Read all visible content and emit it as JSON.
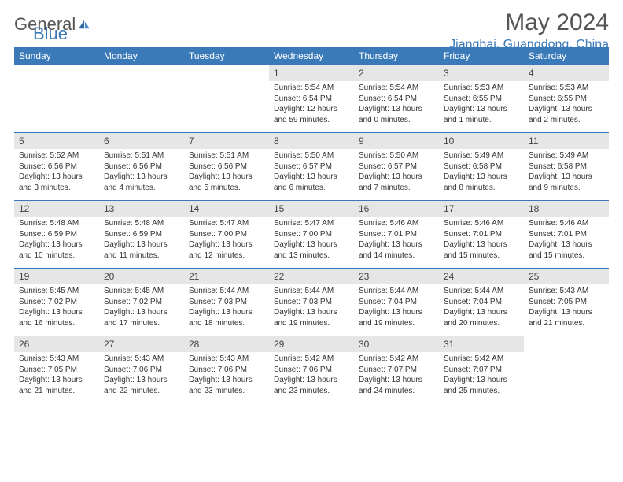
{
  "logo": {
    "text1": "General",
    "text2": "Blue"
  },
  "title": "May 2024",
  "location": "Jianghai, Guangdong, China",
  "colors": {
    "header_bg": "#3b7ab8",
    "header_text": "#ffffff",
    "daynum_bg": "#e6e6e6",
    "row_border": "#3b7ab8",
    "logo_accent": "#3b7ab8",
    "body_text": "#333333"
  },
  "weekdays": [
    "Sunday",
    "Monday",
    "Tuesday",
    "Wednesday",
    "Thursday",
    "Friday",
    "Saturday"
  ],
  "weeks": [
    [
      null,
      null,
      null,
      {
        "d": "1",
        "sr": "5:54 AM",
        "ss": "6:54 PM",
        "dl": "12 hours and 59 minutes."
      },
      {
        "d": "2",
        "sr": "5:54 AM",
        "ss": "6:54 PM",
        "dl": "13 hours and 0 minutes."
      },
      {
        "d": "3",
        "sr": "5:53 AM",
        "ss": "6:55 PM",
        "dl": "13 hours and 1 minute."
      },
      {
        "d": "4",
        "sr": "5:53 AM",
        "ss": "6:55 PM",
        "dl": "13 hours and 2 minutes."
      }
    ],
    [
      {
        "d": "5",
        "sr": "5:52 AM",
        "ss": "6:56 PM",
        "dl": "13 hours and 3 minutes."
      },
      {
        "d": "6",
        "sr": "5:51 AM",
        "ss": "6:56 PM",
        "dl": "13 hours and 4 minutes."
      },
      {
        "d": "7",
        "sr": "5:51 AM",
        "ss": "6:56 PM",
        "dl": "13 hours and 5 minutes."
      },
      {
        "d": "8",
        "sr": "5:50 AM",
        "ss": "6:57 PM",
        "dl": "13 hours and 6 minutes."
      },
      {
        "d": "9",
        "sr": "5:50 AM",
        "ss": "6:57 PM",
        "dl": "13 hours and 7 minutes."
      },
      {
        "d": "10",
        "sr": "5:49 AM",
        "ss": "6:58 PM",
        "dl": "13 hours and 8 minutes."
      },
      {
        "d": "11",
        "sr": "5:49 AM",
        "ss": "6:58 PM",
        "dl": "13 hours and 9 minutes."
      }
    ],
    [
      {
        "d": "12",
        "sr": "5:48 AM",
        "ss": "6:59 PM",
        "dl": "13 hours and 10 minutes."
      },
      {
        "d": "13",
        "sr": "5:48 AM",
        "ss": "6:59 PM",
        "dl": "13 hours and 11 minutes."
      },
      {
        "d": "14",
        "sr": "5:47 AM",
        "ss": "7:00 PM",
        "dl": "13 hours and 12 minutes."
      },
      {
        "d": "15",
        "sr": "5:47 AM",
        "ss": "7:00 PM",
        "dl": "13 hours and 13 minutes."
      },
      {
        "d": "16",
        "sr": "5:46 AM",
        "ss": "7:01 PM",
        "dl": "13 hours and 14 minutes."
      },
      {
        "d": "17",
        "sr": "5:46 AM",
        "ss": "7:01 PM",
        "dl": "13 hours and 15 minutes."
      },
      {
        "d": "18",
        "sr": "5:46 AM",
        "ss": "7:01 PM",
        "dl": "13 hours and 15 minutes."
      }
    ],
    [
      {
        "d": "19",
        "sr": "5:45 AM",
        "ss": "7:02 PM",
        "dl": "13 hours and 16 minutes."
      },
      {
        "d": "20",
        "sr": "5:45 AM",
        "ss": "7:02 PM",
        "dl": "13 hours and 17 minutes."
      },
      {
        "d": "21",
        "sr": "5:44 AM",
        "ss": "7:03 PM",
        "dl": "13 hours and 18 minutes."
      },
      {
        "d": "22",
        "sr": "5:44 AM",
        "ss": "7:03 PM",
        "dl": "13 hours and 19 minutes."
      },
      {
        "d": "23",
        "sr": "5:44 AM",
        "ss": "7:04 PM",
        "dl": "13 hours and 19 minutes."
      },
      {
        "d": "24",
        "sr": "5:44 AM",
        "ss": "7:04 PM",
        "dl": "13 hours and 20 minutes."
      },
      {
        "d": "25",
        "sr": "5:43 AM",
        "ss": "7:05 PM",
        "dl": "13 hours and 21 minutes."
      }
    ],
    [
      {
        "d": "26",
        "sr": "5:43 AM",
        "ss": "7:05 PM",
        "dl": "13 hours and 21 minutes."
      },
      {
        "d": "27",
        "sr": "5:43 AM",
        "ss": "7:06 PM",
        "dl": "13 hours and 22 minutes."
      },
      {
        "d": "28",
        "sr": "5:43 AM",
        "ss": "7:06 PM",
        "dl": "13 hours and 23 minutes."
      },
      {
        "d": "29",
        "sr": "5:42 AM",
        "ss": "7:06 PM",
        "dl": "13 hours and 23 minutes."
      },
      {
        "d": "30",
        "sr": "5:42 AM",
        "ss": "7:07 PM",
        "dl": "13 hours and 24 minutes."
      },
      {
        "d": "31",
        "sr": "5:42 AM",
        "ss": "7:07 PM",
        "dl": "13 hours and 25 minutes."
      },
      null
    ]
  ],
  "labels": {
    "sunrise": "Sunrise:",
    "sunset": "Sunset:",
    "daylight": "Daylight:"
  }
}
